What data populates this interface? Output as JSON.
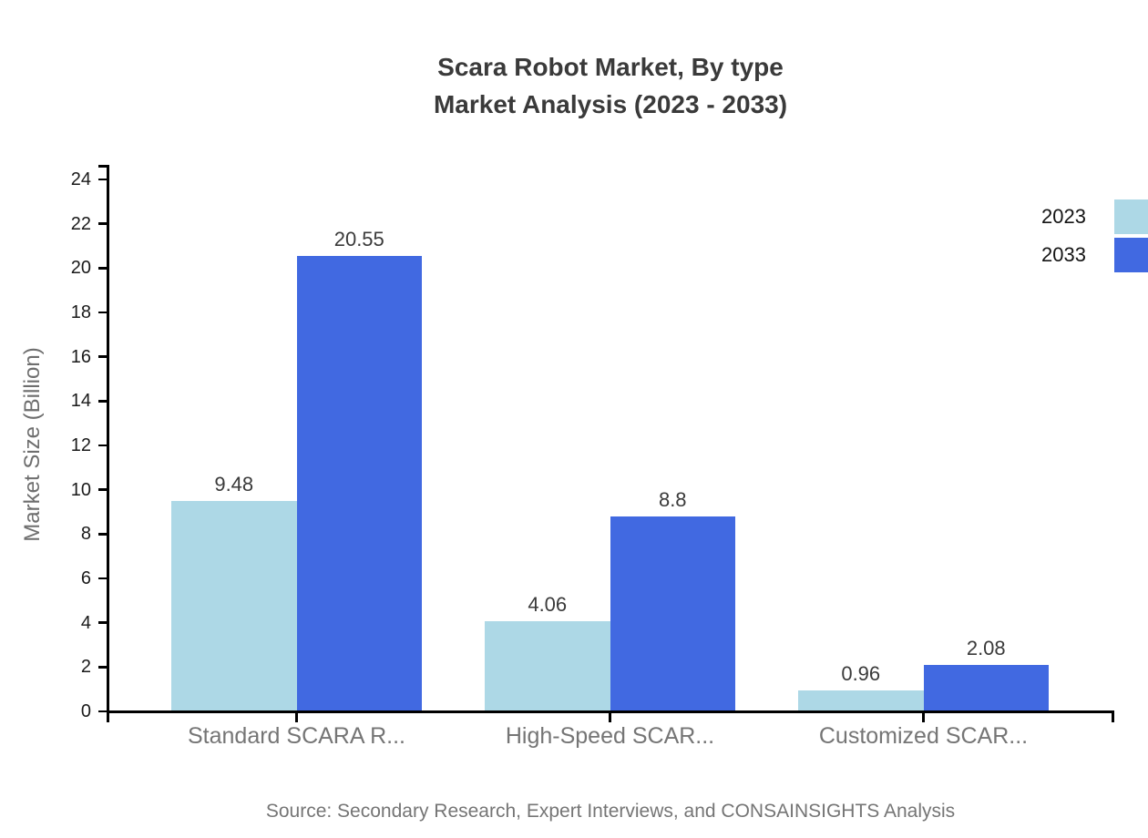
{
  "title": {
    "line1": "Scara Robot Market, By type",
    "line2": "Market Analysis (2023 - 2033)"
  },
  "source": "Source: Secondary Research, Expert Interviews, and CONSAINSIGHTS Analysis",
  "colors": {
    "series_2023": "#ADD8E6",
    "series_2033": "#4169E1",
    "axis": "#000000",
    "title_text": "#3a3a3a",
    "muted_text": "#757575"
  },
  "chart_data": {
    "type": "bar",
    "title": "Scara Robot Market, By type — Market Analysis (2023 - 2033)",
    "categories": [
      "Standard SCARA R...",
      "High-Speed SCAR...",
      "Customized SCAR..."
    ],
    "series": [
      {
        "name": "2023",
        "color": "#ADD8E6",
        "values": [
          9.48,
          4.06,
          0.96
        ]
      },
      {
        "name": "2033",
        "color": "#4169E1",
        "values": [
          20.55,
          8.8,
          2.08
        ]
      }
    ],
    "value_labels": [
      [
        "9.48",
        "4.06",
        "0.96"
      ],
      [
        "20.55",
        "8.8",
        "2.08"
      ]
    ],
    "xlabel": "",
    "ylabel": "Market Size (Billion)",
    "ylim": [
      0,
      24
    ],
    "yticks": [
      0,
      2,
      4,
      6,
      8,
      10,
      12,
      14,
      16,
      18,
      20,
      22,
      24
    ],
    "grid": false,
    "legend_position": "top-right"
  }
}
